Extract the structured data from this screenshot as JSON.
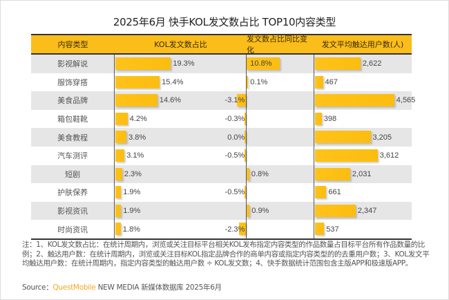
{
  "title": "2025年6月 快手KOL发文数占比 TOP10内容类型",
  "colors": {
    "accent": "#fbbd1a",
    "bar": "#ffc21a",
    "row_alt": "#e6e6e6",
    "brand": "#f5a623"
  },
  "chart_data": {
    "type": "table",
    "title": "2025年6月 快手KOL发文数占比 TOP10内容类型",
    "columns": [
      "内容类型",
      "KOL发文数占比",
      "发文数占比同比变化",
      "发文平均触达用户数(人)"
    ],
    "rows": [
      {
        "category": "影视解说",
        "share": 19.3,
        "share_label": "19.3%",
        "yoy": 10.8,
        "yoy_label": "10.8%",
        "reach": 2622,
        "reach_label": "2,622"
      },
      {
        "category": "服饰穿搭",
        "share": 15.4,
        "share_label": "15.4%",
        "yoy": 0.1,
        "yoy_label": "0.1%",
        "reach": 467,
        "reach_label": "467"
      },
      {
        "category": "美食品牌",
        "share": 14.6,
        "share_label": "14.6%",
        "yoy": -3.1,
        "yoy_label": "-3.1%",
        "reach": 4565,
        "reach_label": "4,565"
      },
      {
        "category": "箱包鞋靴",
        "share": 4.2,
        "share_label": "4.2%",
        "yoy": -0.3,
        "yoy_label": "-0.3%",
        "reach": 398,
        "reach_label": "398"
      },
      {
        "category": "美食教程",
        "share": 3.8,
        "share_label": "3.8%",
        "yoy": 0.0,
        "yoy_label": "0.0%",
        "reach": 3205,
        "reach_label": "3,205"
      },
      {
        "category": "汽车测评",
        "share": 3.1,
        "share_label": "3.1%",
        "yoy": -0.5,
        "yoy_label": "-0.5%",
        "reach": 3612,
        "reach_label": "3,612"
      },
      {
        "category": "短剧",
        "share": 2.3,
        "share_label": "2.3%",
        "yoy": 0.8,
        "yoy_label": "0.8%",
        "reach": 2031,
        "reach_label": "2,031"
      },
      {
        "category": "护肤保养",
        "share": 1.9,
        "share_label": "1.9%",
        "yoy": -0.5,
        "yoy_label": "-0.5%",
        "reach": 661,
        "reach_label": "661"
      },
      {
        "category": "影视资讯",
        "share": 1.9,
        "share_label": "1.9%",
        "yoy": 0.9,
        "yoy_label": "0.9%",
        "reach": 2347,
        "reach_label": "2,347"
      },
      {
        "category": "时尚资讯",
        "share": 1.8,
        "share_label": "1.8%",
        "yoy": -2.3,
        "yoy_label": "-2.3%",
        "reach": 537,
        "reach_label": "537"
      }
    ],
    "share_max": 19.3,
    "yoy_abs_max": 10.8,
    "reach_max": 4565
  },
  "notes": "注：1、KOL发文数占比：在统计周期内，浏览或关注目标平台相关KOL发布指定内容类型的作品数量占目标平台所有作品数量的比例；2、触达用户数：在统计周期内，浏览或关注目标KOL指定品牌合作的商单内容或指定内容类型的的去重用户数；3、KOL发文平均触达用户数：在统计周期内，指定内容类型的触达用户数 ÷ KOL发文数；4、快手数据统计范围包含主版APP和极速版APP。",
  "source": {
    "prefix": "Source：",
    "brand": "QuestMobile",
    "suffix": " NEW MEDIA 新媒体数据库 2025年6月"
  }
}
